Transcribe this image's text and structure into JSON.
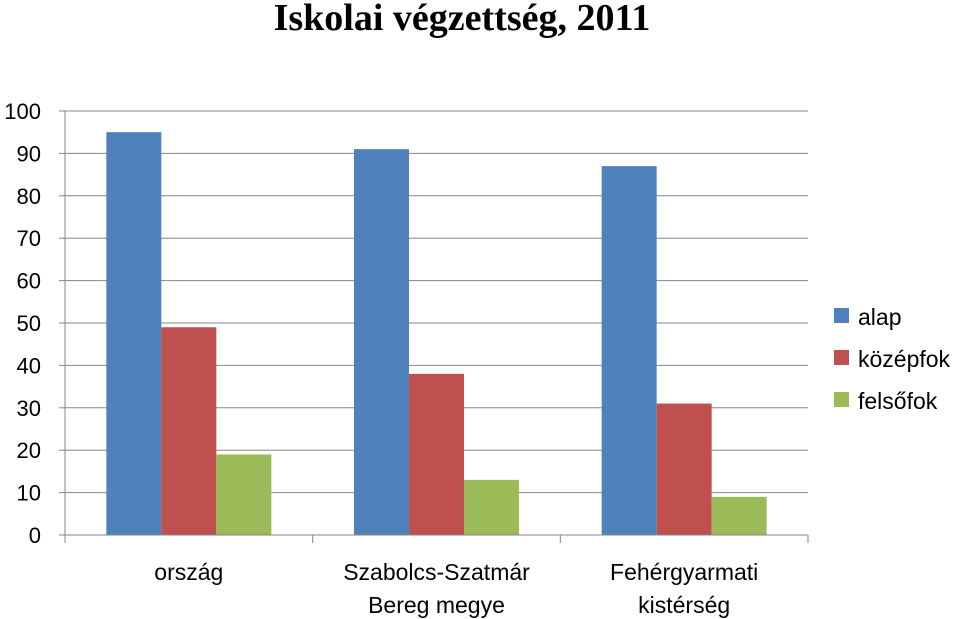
{
  "chart_data": {
    "type": "bar",
    "title": "Iskolai végzettség, 2011",
    "categories": [
      [
        "ország"
      ],
      [
        "Szabolcs-Szatmár",
        "Bereg megye"
      ],
      [
        "Fehérgyarmati",
        "kistérség"
      ]
    ],
    "series": [
      {
        "name": "alap",
        "color": "#4F81BD",
        "values": [
          95,
          91,
          87
        ]
      },
      {
        "name": "középfok",
        "color": "#C0504D",
        "values": [
          49,
          38,
          31
        ]
      },
      {
        "name": "felsőfok",
        "color": "#9BBB59",
        "values": [
          19,
          13,
          9
        ]
      }
    ],
    "ylim": [
      0,
      100
    ],
    "yticks": [
      0,
      10,
      20,
      30,
      40,
      50,
      60,
      70,
      80,
      90,
      100
    ],
    "grid": true,
    "legend_position": "right"
  }
}
